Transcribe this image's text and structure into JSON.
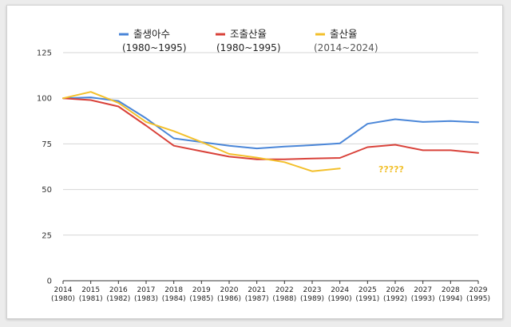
{
  "chart_data": {
    "type": "line",
    "title": "",
    "xlabel": "",
    "ylabel": "",
    "ylim": [
      0,
      125
    ],
    "yticks": [
      0,
      25,
      50,
      75,
      100,
      125
    ],
    "grid": true,
    "legend": "top-left",
    "categories": [
      {
        "year": "2014",
        "alt": "(1980)"
      },
      {
        "year": "2015",
        "alt": "(1981)"
      },
      {
        "year": "2016",
        "alt": "(1982)"
      },
      {
        "year": "2017",
        "alt": "(1983)"
      },
      {
        "year": "2018",
        "alt": "(1984)"
      },
      {
        "year": "2019",
        "alt": "(1985)"
      },
      {
        "year": "2020",
        "alt": "(1986)"
      },
      {
        "year": "2021",
        "alt": "(1987)"
      },
      {
        "year": "2022",
        "alt": "(1988)"
      },
      {
        "year": "2023",
        "alt": "(1989)"
      },
      {
        "year": "2024",
        "alt": "(1990)"
      },
      {
        "year": "2025",
        "alt": "(1991)"
      },
      {
        "year": "2026",
        "alt": "(1992)"
      },
      {
        "year": "2027",
        "alt": "(1993)"
      },
      {
        "year": "2028",
        "alt": "(1994)"
      },
      {
        "year": "2029",
        "alt": "(1995)"
      }
    ],
    "series": [
      {
        "name": "출생아수",
        "range": "(1980~1995)",
        "color": "#4a86d8",
        "values": [
          100,
          100.5,
          98.5,
          89,
          78,
          76,
          74,
          72.5,
          73.5,
          74.3,
          75.3,
          86,
          88.5,
          87,
          87.5,
          86.8
        ]
      },
      {
        "name": "조출산율",
        "range": "(1980~1995)",
        "color": "#d9423a",
        "values": [
          100,
          99,
          95.5,
          85,
          74,
          71,
          68,
          66.5,
          66.5,
          67,
          67.3,
          73.2,
          74.5,
          71.5,
          71.5,
          70
        ]
      },
      {
        "name": "출산율",
        "range": "(2014~2024)",
        "color": "#f3c02c",
        "values": [
          100,
          103.5,
          97.5,
          87,
          82,
          76,
          69.5,
          67.5,
          65,
          60,
          61.5,
          null,
          null,
          null,
          null,
          null
        ]
      }
    ],
    "annotation": "?????"
  }
}
